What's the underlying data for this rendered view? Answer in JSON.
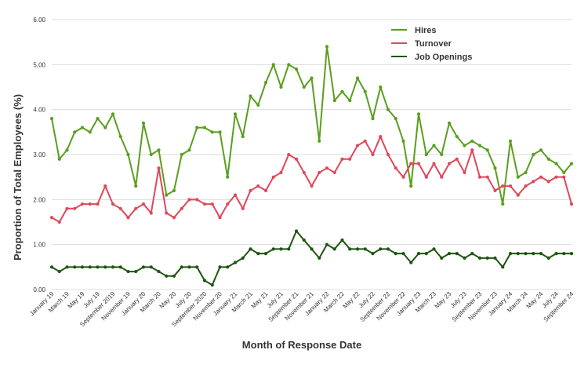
{
  "chart_data": {
    "type": "line",
    "title": "",
    "xlabel": "Month of Response Date",
    "ylabel": "Proportion of Total Employees (%)",
    "ylim": [
      0,
      6
    ],
    "yticks": [
      "0.00",
      "1.00",
      "2.00",
      "3.00",
      "4.00",
      "5.00",
      "6.00"
    ],
    "grid": true,
    "legend_position": "top-right",
    "x": [
      "January 19",
      "February 19",
      "March 19",
      "April 19",
      "May 19",
      "June 19",
      "July 19",
      "August 19",
      "September 2019",
      "October 19",
      "November 19",
      "December 19",
      "January 20",
      "February 20",
      "March 20",
      "April 20",
      "May 20",
      "June 20",
      "July 20",
      "August 20",
      "September 2020",
      "October 20",
      "November 20",
      "December 20",
      "January 21",
      "February 21",
      "March 21",
      "April 21",
      "May 21",
      "June 21",
      "July 21",
      "August 21",
      "September 21",
      "October 21",
      "November 21",
      "December 21",
      "January 22",
      "February 22",
      "March 22",
      "April 22",
      "May 22",
      "June 22",
      "July 22",
      "August 22",
      "September 22",
      "October 22",
      "November 22",
      "December 22",
      "January 23",
      "February 23",
      "March 23",
      "April 23",
      "May 23",
      "June 23",
      "July 23",
      "August 23",
      "September 23",
      "October 23",
      "November 23",
      "December 23",
      "January 24",
      "February 24",
      "March 24",
      "April 24",
      "May 24",
      "June 24",
      "July 24",
      "August 24",
      "September 24"
    ],
    "x_tick_labels": [
      "January 19",
      "March 19",
      "May 19",
      "July 19",
      "September 2019",
      "November 19",
      "January 20",
      "March 20",
      "May 20",
      "July 20",
      "September 2020",
      "November 20",
      "January 21",
      "March 21",
      "May 21",
      "July 21",
      "September 21",
      "November 21",
      "January 22",
      "March 22",
      "May 22",
      "July 22",
      "September 22",
      "November 22",
      "January 23",
      "March 23",
      "May 23",
      "July 23",
      "September 23",
      "November 23",
      "January 24",
      "March 24",
      "May 24",
      "July 24",
      "September 24"
    ],
    "series": [
      {
        "name": "Hires",
        "color": "#5a9e1e",
        "values": [
          3.8,
          2.9,
          3.1,
          3.5,
          3.6,
          3.5,
          3.8,
          3.6,
          3.9,
          3.4,
          3.0,
          2.3,
          3.7,
          3.0,
          3.1,
          2.1,
          2.2,
          3.0,
          3.1,
          3.6,
          3.6,
          3.5,
          3.5,
          2.5,
          3.9,
          3.4,
          4.3,
          4.1,
          4.6,
          5.0,
          4.5,
          5.0,
          4.9,
          4.5,
          4.7,
          3.3,
          5.4,
          4.2,
          4.4,
          4.2,
          4.7,
          4.4,
          3.8,
          4.5,
          4.0,
          3.8,
          3.3,
          2.3,
          3.9,
          3.0,
          3.2,
          3.0,
          3.7,
          3.4,
          3.2,
          3.3,
          3.2,
          3.1,
          2.7,
          1.9,
          3.3,
          2.5,
          2.6,
          3.0,
          3.1,
          2.9,
          2.8,
          2.6,
          2.8
        ]
      },
      {
        "name": "Turnover",
        "color": "#e0475b",
        "values": [
          1.6,
          1.5,
          1.8,
          1.8,
          1.9,
          1.9,
          1.9,
          2.3,
          1.9,
          1.8,
          1.6,
          1.8,
          1.9,
          1.7,
          2.7,
          1.7,
          1.6,
          1.8,
          2.0,
          2.0,
          1.9,
          1.9,
          1.6,
          1.9,
          2.1,
          1.8,
          2.2,
          2.3,
          2.2,
          2.5,
          2.6,
          3.0,
          2.9,
          2.6,
          2.3,
          2.6,
          2.7,
          2.6,
          2.9,
          2.9,
          3.2,
          3.3,
          3.0,
          3.4,
          3.0,
          2.7,
          2.5,
          2.8,
          2.8,
          2.5,
          2.8,
          2.5,
          2.8,
          2.9,
          2.6,
          3.1,
          2.5,
          2.5,
          2.2,
          2.3,
          2.3,
          2.1,
          2.3,
          2.4,
          2.5,
          2.4,
          2.5,
          2.5,
          1.9
        ]
      },
      {
        "name": "Job Openings",
        "color": "#1e5511",
        "values": [
          0.5,
          0.4,
          0.5,
          0.5,
          0.5,
          0.5,
          0.5,
          0.5,
          0.5,
          0.5,
          0.4,
          0.4,
          0.5,
          0.5,
          0.4,
          0.3,
          0.3,
          0.5,
          0.5,
          0.5,
          0.2,
          0.1,
          0.5,
          0.5,
          0.6,
          0.7,
          0.9,
          0.8,
          0.8,
          0.9,
          0.9,
          0.9,
          1.3,
          1.1,
          0.9,
          0.7,
          1.0,
          0.9,
          1.1,
          0.9,
          0.9,
          0.9,
          0.8,
          0.9,
          0.9,
          0.8,
          0.8,
          0.6,
          0.8,
          0.8,
          0.9,
          0.7,
          0.8,
          0.8,
          0.7,
          0.8,
          0.7,
          0.7,
          0.7,
          0.5,
          0.8,
          0.8,
          0.8,
          0.8,
          0.8,
          0.7,
          0.8,
          0.8,
          0.8
        ]
      }
    ]
  },
  "colors": {
    "grid": "#dcdcdc",
    "axis_text": "#333333"
  }
}
